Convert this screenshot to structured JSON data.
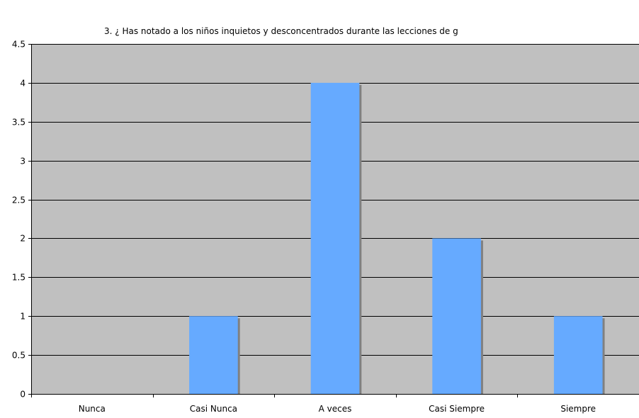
{
  "chart_data": {
    "type": "bar",
    "title": "3. ¿ Has notado a los niños inquietos y desconcentrados durante las lecciones de g",
    "categories": [
      "Nunca",
      "Casi Nunca",
      "A veces",
      "Casi Siempre",
      "Siempre"
    ],
    "values": [
      0,
      1,
      4,
      2,
      1
    ],
    "xlabel": "",
    "ylabel": "",
    "ylim": [
      0,
      4.5
    ],
    "yticks": [
      "0",
      "0.5",
      "1",
      "1.5",
      "2",
      "2.5",
      "3",
      "3.5",
      "4",
      "4.5"
    ],
    "grid": true,
    "legend": "none",
    "colors": {
      "plot_background": "#C0C0C0",
      "bar": "#66AAFF",
      "bar_shadow": "#808080",
      "gridline": "#000000"
    }
  }
}
